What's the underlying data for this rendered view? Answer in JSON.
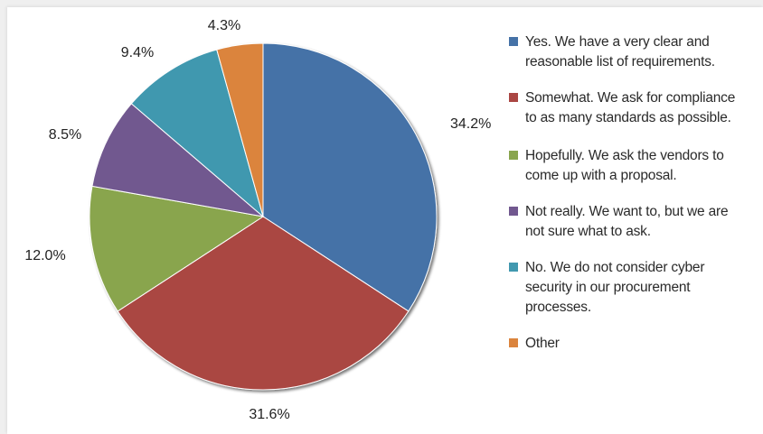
{
  "chart_data": {
    "type": "pie",
    "slices": [
      {
        "label": "Yes. We have a very clear and reasonable list of requirements.",
        "value": 34.2,
        "display": "34.2%",
        "color": "#4572a7"
      },
      {
        "label": "Somewhat. We ask for compliance to as many standards as possible.",
        "value": 31.6,
        "display": "31.6%",
        "color": "#aa4643"
      },
      {
        "label": "Hopefully. We ask the vendors to come up with a proposal.",
        "value": 12.0,
        "display": "12.0%",
        "color": "#89a54e"
      },
      {
        "label": "Not really. We want to, but we are not sure what to ask.",
        "value": 8.5,
        "display": "8.5%",
        "color": "#71588f"
      },
      {
        "label": "No. We do not consider cyber security in our procurement processes.",
        "value": 9.4,
        "display": "9.4%",
        "color": "#4198af"
      },
      {
        "label": "Other",
        "value": 4.3,
        "display": "4.3%",
        "color": "#db843d"
      }
    ],
    "legend": {
      "position": "right",
      "entries": [
        [
          "Yes. We have a very clear and",
          "reasonable list of requirements."
        ],
        [
          "Somewhat. We ask for compliance",
          "to as many standards as possible."
        ],
        [
          "Hopefully. We ask the vendors to",
          "come up with a proposal."
        ],
        [
          "Not really. We want to, but we are",
          "not sure what to ask."
        ],
        [
          "No. We do not consider cyber",
          "security in our procurement",
          "processes."
        ],
        [
          "Other"
        ]
      ]
    },
    "start": "12 o'clock",
    "direction": "clockwise"
  }
}
